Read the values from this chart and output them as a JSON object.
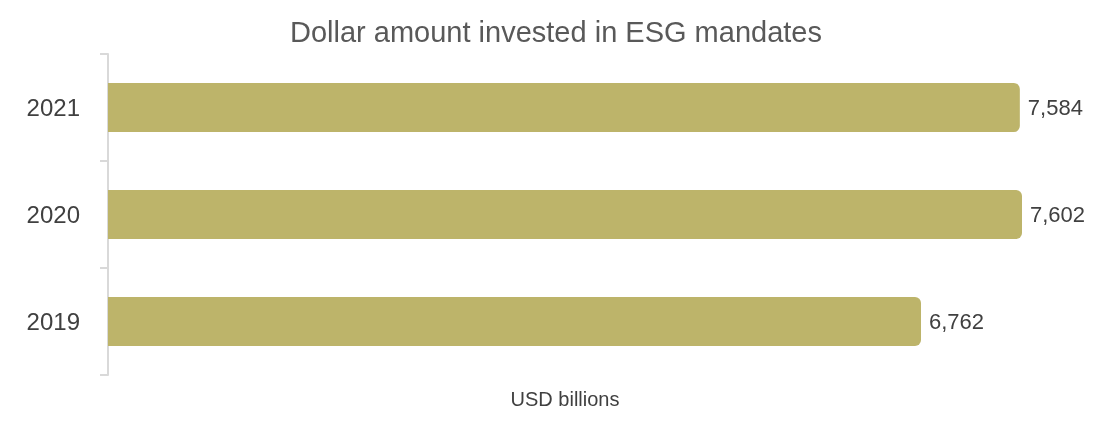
{
  "chart_data": {
    "type": "bar",
    "orientation": "horizontal",
    "title": "Dollar amount invested in ESG mandates",
    "xlabel": "USD billions",
    "categories": [
      "2021",
      "2020",
      "2019"
    ],
    "values": [
      7584,
      7602,
      6762
    ],
    "value_labels": [
      "7,584",
      "7,602",
      "6,762"
    ],
    "color": "#bdb46a"
  }
}
